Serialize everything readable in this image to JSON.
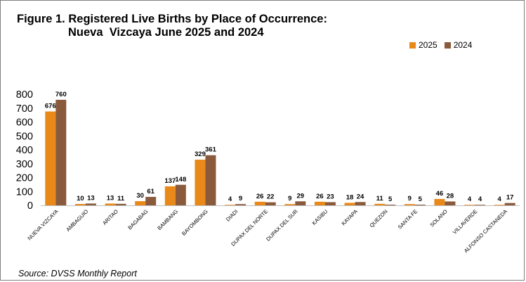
{
  "title_line1": "Figure 1. Registered Live Births by Place of Occurrence:",
  "title_line2": "Nueva  Vizcaya June 2025 and 2024",
  "source": "Source: DVSS Monthly Report",
  "colors": {
    "s2025": "#e9891a",
    "s2024": "#8a5a3c"
  },
  "chart_data": {
    "type": "bar",
    "categories": [
      "NUEVA VIZCAYA",
      "AMBAGUIO",
      "ARITAO",
      "BAGABAG",
      "BAMBANG",
      "BAYOMBONG",
      "DIADI",
      "DUPAX DEL NORTE",
      "DUPAX DEL SUR",
      "KASIBU",
      "KAYAPA",
      "QUEZON",
      "SANTA FE",
      "SOLANO",
      "VILLAVERDE",
      "ALFONSO CASTANEDA"
    ],
    "series": [
      {
        "name": "2025",
        "values": [
          676,
          10,
          13,
          30,
          137,
          329,
          4,
          26,
          9,
          26,
          18,
          11,
          9,
          46,
          4,
          4
        ]
      },
      {
        "name": "2024",
        "values": [
          760,
          13,
          11,
          61,
          148,
          361,
          9,
          22,
          29,
          23,
          24,
          5,
          5,
          28,
          4,
          17
        ]
      }
    ],
    "ylim": [
      0,
      800
    ],
    "yticks": [
      0,
      100,
      200,
      300,
      400,
      500,
      600,
      700,
      800
    ],
    "xlabel": "",
    "ylabel": "",
    "legend_position": "top-right",
    "grid": false
  }
}
